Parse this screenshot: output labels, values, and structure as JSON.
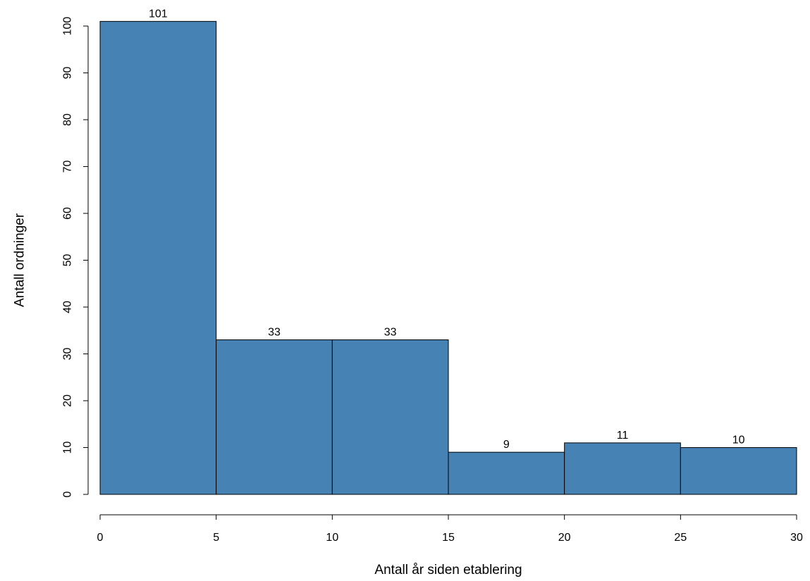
{
  "chart_data": {
    "type": "bar",
    "title": "",
    "xlabel": "Antall år siden etablering",
    "ylabel": "Antall ordninger",
    "bins": [
      {
        "from": 0,
        "to": 5,
        "value": 101,
        "label": "101"
      },
      {
        "from": 5,
        "to": 10,
        "value": 33,
        "label": "33"
      },
      {
        "from": 10,
        "to": 15,
        "value": 33,
        "label": "33"
      },
      {
        "from": 15,
        "to": 20,
        "value": 9,
        "label": "9"
      },
      {
        "from": 20,
        "to": 25,
        "value": 11,
        "label": "11"
      },
      {
        "from": 25,
        "to": 30,
        "value": 10,
        "label": "10"
      }
    ],
    "xlim": [
      0,
      30
    ],
    "ylim": [
      0,
      100
    ],
    "xticks": [
      {
        "value": 0,
        "label": "0"
      },
      {
        "value": 5,
        "label": "5"
      },
      {
        "value": 10,
        "label": "10"
      },
      {
        "value": 15,
        "label": "15"
      },
      {
        "value": 20,
        "label": "20"
      },
      {
        "value": 25,
        "label": "25"
      },
      {
        "value": 30,
        "label": "30"
      }
    ],
    "yticks": [
      {
        "value": 0,
        "label": "0"
      },
      {
        "value": 10,
        "label": "10"
      },
      {
        "value": 20,
        "label": "20"
      },
      {
        "value": 30,
        "label": "30"
      },
      {
        "value": 40,
        "label": "40"
      },
      {
        "value": 50,
        "label": "50"
      },
      {
        "value": 60,
        "label": "60"
      },
      {
        "value": 70,
        "label": "70"
      },
      {
        "value": 80,
        "label": "80"
      },
      {
        "value": 90,
        "label": "90"
      },
      {
        "value": 100,
        "label": "100"
      }
    ],
    "grid": false,
    "legend": "none",
    "colors": {
      "bar_fill": "#4682b4",
      "bar_stroke": "#000000",
      "axis": "#000000"
    }
  }
}
